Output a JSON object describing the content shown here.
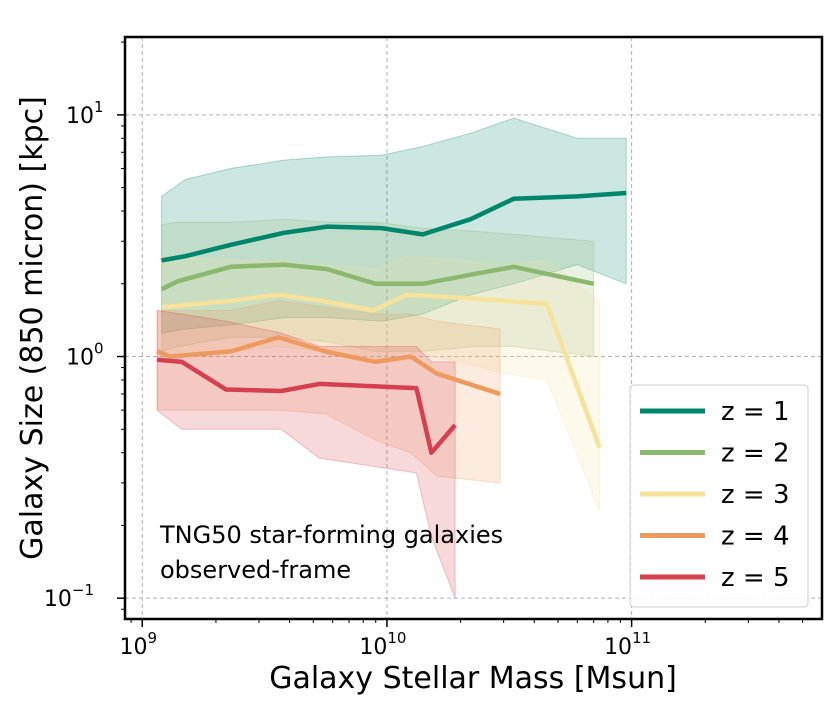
{
  "chart_data": {
    "type": "line",
    "xscale": "log",
    "yscale": "log",
    "xlim": [
      850000000,
      600000000000
    ],
    "ylim": [
      0.082,
      21
    ],
    "xlabel": "Galaxy Stellar Mass [Msun]",
    "ylabel": "Galaxy Size (850 micron) [kpc]",
    "grid": true,
    "legend_position": "lower-right",
    "annotation": [
      "TNG50 star-forming galaxies",
      "observed-frame"
    ],
    "x_ticks": [
      {
        "value": 1000000000,
        "base": "10",
        "exp": "9"
      },
      {
        "value": 10000000000,
        "base": "10",
        "exp": "10"
      },
      {
        "value": 100000000000,
        "base": "10",
        "exp": "11"
      }
    ],
    "y_ticks": [
      {
        "value": 0.1,
        "base": "10",
        "exp": "−1"
      },
      {
        "value": 1,
        "base": "10",
        "exp": "0"
      },
      {
        "value": 10,
        "base": "10",
        "exp": "1"
      }
    ],
    "series": [
      {
        "name": "z = 1",
        "color": "#00876b",
        "x": [
          1200000000,
          1500000000,
          2300000000,
          3800000000,
          5700000000,
          9500000000,
          14000000000,
          22000000000,
          33000000000,
          60000000000,
          95000000000
        ],
        "y": [
          2.5,
          2.6,
          2.9,
          3.25,
          3.45,
          3.4,
          3.2,
          3.7,
          4.5,
          4.6,
          4.75
        ],
        "band_upper": [
          4.6,
          5.4,
          6.0,
          6.5,
          6.7,
          6.8,
          7.4,
          8.4,
          9.7,
          8.0,
          8.0
        ],
        "band_lower": [
          1.25,
          1.3,
          1.35,
          1.45,
          1.45,
          1.4,
          1.5,
          1.8,
          2.0,
          2.4,
          2.0
        ]
      },
      {
        "name": "z = 2",
        "color": "#8ab86f",
        "x": [
          1200000000,
          1400000000,
          2300000000,
          3800000000,
          5700000000,
          9000000000,
          14000000000,
          23000000000,
          33000000000,
          70000000000
        ],
        "y": [
          1.9,
          2.05,
          2.35,
          2.4,
          2.3,
          2.0,
          2.0,
          2.2,
          2.35,
          2.0
        ],
        "band_upper": [
          3.5,
          3.6,
          3.6,
          3.7,
          3.6,
          3.6,
          3.4,
          3.3,
          3.2,
          3.0
        ],
        "band_lower": [
          1.05,
          1.1,
          1.2,
          1.2,
          1.15,
          1.05,
          1.05,
          1.1,
          1.1,
          1.0
        ]
      },
      {
        "name": "z = 3",
        "color": "#f6e29a",
        "x": [
          1200000000,
          2300000000,
          3600000000,
          5400000000,
          8800000000,
          12000000000,
          20000000000,
          30000000000,
          45000000000,
          74000000000
        ],
        "y": [
          1.6,
          1.7,
          1.8,
          1.7,
          1.55,
          1.8,
          1.75,
          1.7,
          1.65,
          0.42
        ],
        "band_upper": [
          2.6,
          2.5,
          2.5,
          2.4,
          2.3,
          2.6,
          2.5,
          2.4,
          2.5,
          1.7
        ],
        "band_lower": [
          1.0,
          1.05,
          1.1,
          1.05,
          0.95,
          1.05,
          0.95,
          0.85,
          0.8,
          0.23
        ]
      },
      {
        "name": "z = 4",
        "color": "#ee9a5e",
        "x": [
          1150000000,
          1300000000,
          2300000000,
          3600000000,
          5600000000,
          9000000000,
          12500000000,
          16000000000,
          29000000000
        ],
        "y": [
          1.05,
          1.0,
          1.05,
          1.2,
          1.05,
          0.95,
          1.0,
          0.85,
          0.7
        ],
        "band_upper": [
          1.55,
          1.55,
          1.55,
          1.7,
          1.6,
          1.5,
          1.5,
          1.4,
          1.3
        ],
        "band_lower": [
          0.6,
          0.6,
          0.6,
          0.6,
          0.58,
          0.45,
          0.4,
          0.32,
          0.3
        ]
      },
      {
        "name": "z = 5",
        "color": "#d63f4f",
        "x": [
          1150000000,
          1450000000,
          2200000000,
          3700000000,
          5300000000,
          13200000000,
          15200000000,
          19000000000
        ],
        "y": [
          0.97,
          0.95,
          0.73,
          0.72,
          0.77,
          0.74,
          0.4,
          0.52
        ],
        "band_upper": [
          1.55,
          1.5,
          1.4,
          1.25,
          1.1,
          1.1,
          0.95,
          0.95
        ],
        "band_lower": [
          0.6,
          0.5,
          0.5,
          0.5,
          0.38,
          0.33,
          0.18,
          0.1
        ]
      }
    ]
  }
}
